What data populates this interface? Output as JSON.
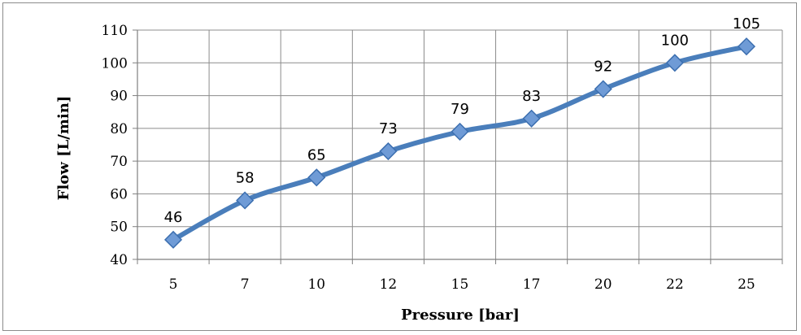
{
  "chart_data": {
    "type": "line",
    "title": "",
    "xlabel": "Pressure [bar]",
    "ylabel": "Flow [L/min]",
    "categories": [
      "5",
      "7",
      "10",
      "12",
      "15",
      "17",
      "20",
      "22",
      "25"
    ],
    "series": [
      {
        "values": [
          46,
          58,
          65,
          73,
          79,
          83,
          92,
          100,
          105
        ],
        "color": "#4a7ebb",
        "marker": "diamond",
        "data_labels": [
          "46",
          "58",
          "65",
          "73",
          "79",
          "83",
          "92",
          "100",
          "105"
        ]
      }
    ],
    "ylim": [
      40,
      110
    ],
    "yticks": [
      "40",
      "50",
      "60",
      "70",
      "80",
      "90",
      "100",
      "110"
    ],
    "grid": true,
    "legend": "none"
  }
}
